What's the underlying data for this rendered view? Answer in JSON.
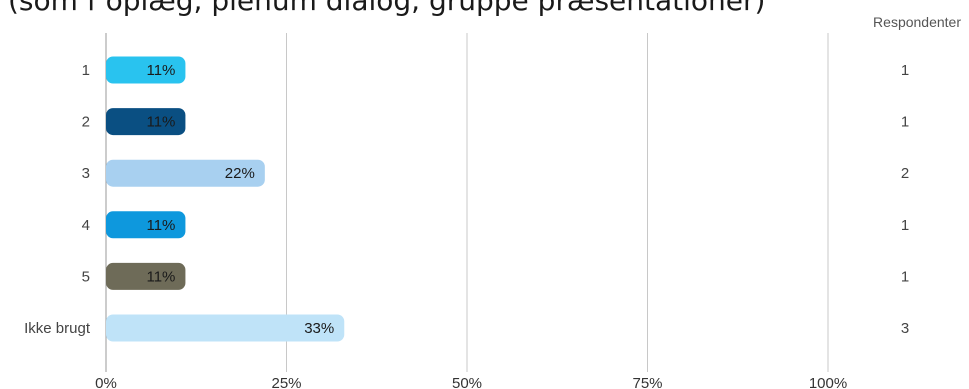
{
  "title": "(som f oplæg, plenum dialog, gruppe præsentationer)",
  "respondents_header": "Respondenter",
  "chart_data": {
    "type": "bar",
    "orientation": "horizontal",
    "categories": [
      "1",
      "2",
      "3",
      "4",
      "5",
      "Ikke brugt"
    ],
    "values": [
      11,
      11,
      22,
      11,
      11,
      33
    ],
    "value_labels": [
      "11%",
      "11%",
      "22%",
      "11%",
      "11%",
      "33%"
    ],
    "respondents": [
      "1",
      "1",
      "2",
      "1",
      "1",
      "3"
    ],
    "bar_colors": [
      "#29c3ef",
      "#0a4f82",
      "#a8d0f0",
      "#0e98dd",
      "#6e6b58",
      "#bfe3f8"
    ],
    "xticks": [
      0,
      25,
      50,
      75,
      100
    ],
    "xtick_labels": [
      "0%",
      "25%",
      "50%",
      "75%",
      "100%"
    ],
    "xlim": [
      0,
      100
    ],
    "grid": true
  }
}
